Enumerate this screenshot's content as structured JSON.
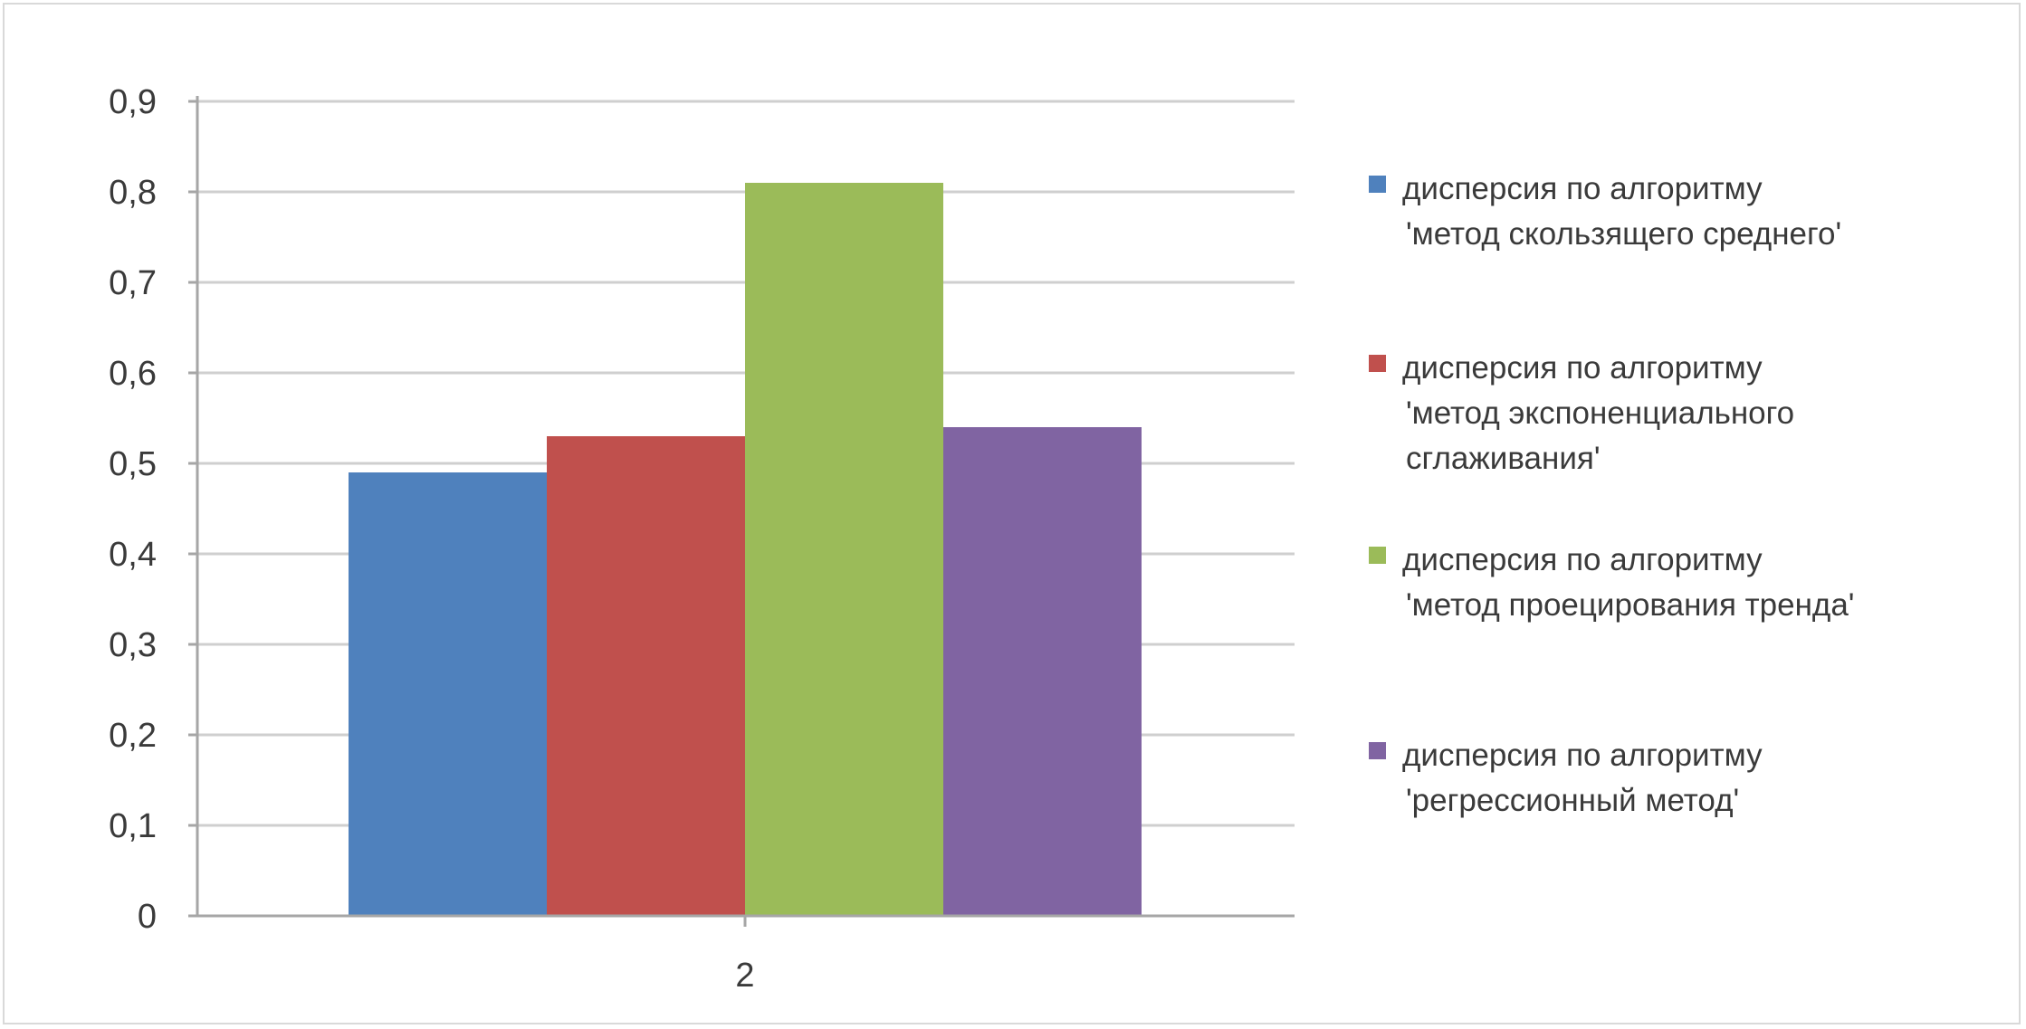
{
  "chart_data": {
    "type": "bar",
    "categories": [
      "2"
    ],
    "series": [
      {
        "name": "дисперсия по алгоритму 'метод скользящего среднего'",
        "legend_lines": [
          "дисперсия по алгоритму",
          "'метод скользящего среднего'"
        ],
        "values": [
          0.49
        ],
        "color": "#4f81bd"
      },
      {
        "name": "дисперсия по алгоритму 'метод экспоненциального сглаживания'",
        "legend_lines": [
          "дисперсия по алгоритму",
          "'метод экспоненциального",
          "сглаживания'"
        ],
        "values": [
          0.53
        ],
        "color": "#c0504d"
      },
      {
        "name": "дисперсия по алгоритму 'метод проецирования тренда'",
        "legend_lines": [
          "дисперсия по алгоритму",
          "'метод проецирования тренда'"
        ],
        "values": [
          0.81
        ],
        "color": "#9bbb59"
      },
      {
        "name": "дисперсия по алгоритму 'регрессионный метод'",
        "legend_lines": [
          "дисперсия по алгоритму",
          "'регрессионный метод'"
        ],
        "values": [
          0.54
        ],
        "color": "#8064a2"
      }
    ],
    "ylim": [
      0,
      0.9
    ],
    "yticks": [
      "0",
      "0,1",
      "0,2",
      "0,3",
      "0,4",
      "0,5",
      "0,6",
      "0,7",
      "0,8",
      "0,9"
    ],
    "grid": true,
    "legend": "right",
    "title": "",
    "xlabel": "",
    "ylabel": "",
    "gridline_color": "#cfcfcf",
    "axis_color": "#a6a6a6"
  }
}
